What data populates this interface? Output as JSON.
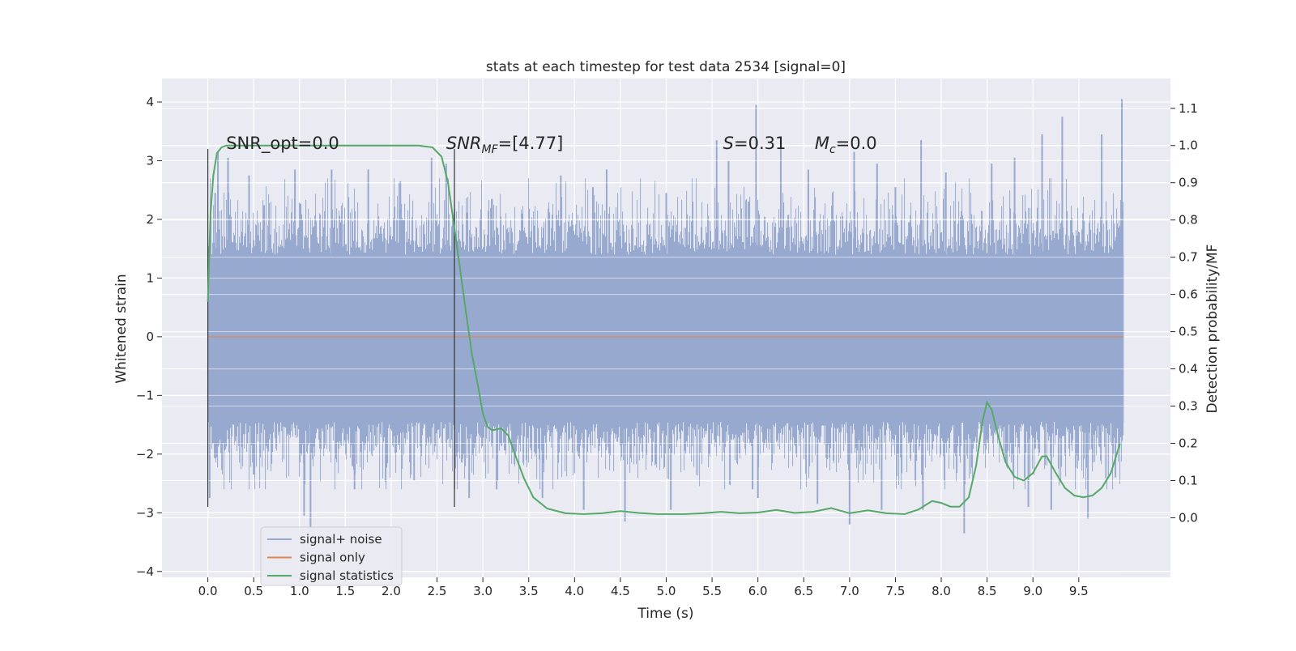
{
  "chart_data": {
    "type": "line",
    "title": "stats at each timestep for test data 2534 [signal=0]",
    "xlabel": "Time (s)",
    "ylabel": "Whitened strain",
    "ylabel_right": "Detection probability/MF",
    "xlim": [
      -0.5,
      10.5
    ],
    "ylim": [
      -4.1,
      4.4
    ],
    "ylim_right": [
      -0.16,
      1.18
    ],
    "x_ticks": [
      0.0,
      0.5,
      1.0,
      1.5,
      2.0,
      2.5,
      3.0,
      3.5,
      4.0,
      4.5,
      5.0,
      5.5,
      6.0,
      6.5,
      7.0,
      7.5,
      8.0,
      8.5,
      9.0,
      9.5
    ],
    "x_tick_labels": [
      "0.0",
      "0.5",
      "1.0",
      "1.5",
      "2.0",
      "2.5",
      "3.0",
      "3.5",
      "4.0",
      "4.5",
      "5.0",
      "5.5",
      "6.0",
      "6.5",
      "7.0",
      "7.5",
      "8.0",
      "8.5",
      "9.0",
      "9.5"
    ],
    "y_ticks": [
      -4,
      -3,
      -2,
      -1,
      0,
      1,
      2,
      3,
      4
    ],
    "y_tick_labels": [
      "−4",
      "−3",
      "−2",
      "−1",
      "0",
      "1",
      "2",
      "3",
      "4"
    ],
    "y_right_ticks": [
      0.0,
      0.1,
      0.2,
      0.3,
      0.4,
      0.5,
      0.6,
      0.7,
      0.8,
      0.9,
      1.0,
      1.1
    ],
    "y_right_tick_labels": [
      "0.0",
      "0.1",
      "0.2",
      "0.3",
      "0.4",
      "0.5",
      "0.6",
      "0.7",
      "0.8",
      "0.9",
      "1.0",
      "1.1"
    ],
    "grid": true,
    "legend_position": "lower-left",
    "series": [
      {
        "name": "signal+ noise",
        "color": "#98a9d0",
        "kind": "noise-envelope",
        "x_range": [
          0.0,
          9.99
        ],
        "core_band": [
          -1.45,
          1.4
        ],
        "spike_high": [
          [
            0.08,
            2.45
          ],
          [
            0.11,
            3.15
          ],
          [
            0.22,
            3.05
          ],
          [
            0.45,
            2.75
          ],
          [
            0.95,
            2.85
          ],
          [
            1.35,
            2.85
          ],
          [
            1.75,
            2.85
          ],
          [
            2.1,
            2.65
          ],
          [
            2.44,
            3.05
          ],
          [
            2.6,
            2.95
          ],
          [
            3.1,
            2.35
          ],
          [
            3.85,
            2.75
          ],
          [
            4.2,
            2.55
          ],
          [
            4.35,
            2.85
          ],
          [
            5.0,
            2.45
          ],
          [
            5.55,
            3.35
          ],
          [
            5.68,
            3.0
          ],
          [
            5.98,
            3.95
          ],
          [
            6.25,
            3.35
          ],
          [
            6.55,
            2.85
          ],
          [
            7.05,
            3.15
          ],
          [
            7.3,
            2.95
          ],
          [
            7.5,
            2.55
          ],
          [
            7.78,
            3.35
          ],
          [
            8.05,
            2.8
          ],
          [
            8.55,
            2.95
          ],
          [
            8.8,
            3.05
          ],
          [
            9.1,
            3.45
          ],
          [
            9.32,
            3.75
          ],
          [
            9.75,
            3.45
          ],
          [
            9.97,
            4.05
          ]
        ],
        "spike_low": [
          [
            0.02,
            -2.75
          ],
          [
            0.5,
            -2.35
          ],
          [
            1.05,
            -3.05
          ],
          [
            1.12,
            -3.25
          ],
          [
            1.6,
            -2.6
          ],
          [
            2.25,
            -2.45
          ],
          [
            2.85,
            -2.75
          ],
          [
            3.15,
            -2.6
          ],
          [
            3.65,
            -2.75
          ],
          [
            4.1,
            -2.95
          ],
          [
            4.55,
            -3.15
          ],
          [
            5.05,
            -2.95
          ],
          [
            6.0,
            -2.75
          ],
          [
            6.65,
            -2.85
          ],
          [
            7.0,
            -3.2
          ],
          [
            7.35,
            -2.95
          ],
          [
            7.8,
            -2.95
          ],
          [
            8.25,
            -3.35
          ],
          [
            8.95,
            -2.9
          ],
          [
            9.2,
            -2.95
          ],
          [
            9.6,
            -3.1
          ],
          [
            9.9,
            -2.4
          ]
        ]
      },
      {
        "name": "signal only",
        "color": "#dd8452",
        "x": [
          0.0,
          9.99
        ],
        "y": [
          0.0,
          0.0
        ]
      },
      {
        "name": "signal statistics",
        "color": "#55a868",
        "axis": "right",
        "x": [
          0.0,
          0.03,
          0.06,
          0.1,
          0.15,
          0.2,
          0.3,
          0.5,
          1.0,
          1.5,
          2.0,
          2.3,
          2.45,
          2.55,
          2.62,
          2.7,
          2.8,
          2.88,
          2.95,
          3.0,
          3.05,
          3.1,
          3.2,
          3.28,
          3.35,
          3.45,
          3.55,
          3.7,
          3.9,
          4.1,
          4.3,
          4.5,
          4.7,
          4.9,
          5.2,
          5.4,
          5.6,
          5.8,
          6.0,
          6.2,
          6.4,
          6.6,
          6.8,
          7.0,
          7.2,
          7.4,
          7.6,
          7.75,
          7.9,
          8.0,
          8.1,
          8.2,
          8.3,
          8.38,
          8.45,
          8.5,
          8.55,
          8.62,
          8.7,
          8.8,
          8.9,
          9.0,
          9.1,
          9.15,
          9.25,
          9.35,
          9.45,
          9.55,
          9.65,
          9.75,
          9.85,
          9.95
        ],
        "y": [
          0.58,
          0.82,
          0.92,
          0.98,
          0.995,
          1.0,
          1.0,
          1.0,
          1.0,
          1.0,
          1.0,
          1.0,
          0.995,
          0.97,
          0.9,
          0.76,
          0.58,
          0.44,
          0.35,
          0.28,
          0.245,
          0.235,
          0.24,
          0.22,
          0.17,
          0.105,
          0.055,
          0.025,
          0.012,
          0.01,
          0.012,
          0.018,
          0.013,
          0.01,
          0.01,
          0.012,
          0.016,
          0.012,
          0.014,
          0.021,
          0.013,
          0.016,
          0.026,
          0.012,
          0.02,
          0.012,
          0.01,
          0.022,
          0.045,
          0.04,
          0.03,
          0.03,
          0.055,
          0.14,
          0.26,
          0.31,
          0.29,
          0.22,
          0.15,
          0.11,
          0.1,
          0.12,
          0.165,
          0.165,
          0.12,
          0.08,
          0.06,
          0.055,
          0.06,
          0.08,
          0.12,
          0.2
        ]
      }
    ],
    "vlines": [
      {
        "x": 0.0,
        "y_range": [
          -2.9,
          3.2
        ],
        "color": "#333333"
      },
      {
        "x": 2.69,
        "y_range": [
          -2.9,
          3.2
        ],
        "color": "#333333"
      }
    ],
    "annotations": [
      {
        "id": "snr-opt",
        "text": "SNR_opt=0.0",
        "x": 0.2,
        "y": 3.2
      },
      {
        "id": "snr-mf",
        "var": "SNR",
        "sub": "MF",
        "rest": "=[4.77]",
        "x": 2.6,
        "y": 3.2
      },
      {
        "id": "s-value",
        "var": "S",
        "rest": "=0.31",
        "x": 5.62,
        "y": 3.2
      },
      {
        "id": "mc-value",
        "var": "M",
        "sub": "c",
        "rest": "=0.0",
        "x": 6.62,
        "y": 3.2
      }
    ],
    "colors": {
      "plot_bg": "#eaeaf2",
      "grid": "#ffffff",
      "text": "#262626"
    }
  }
}
